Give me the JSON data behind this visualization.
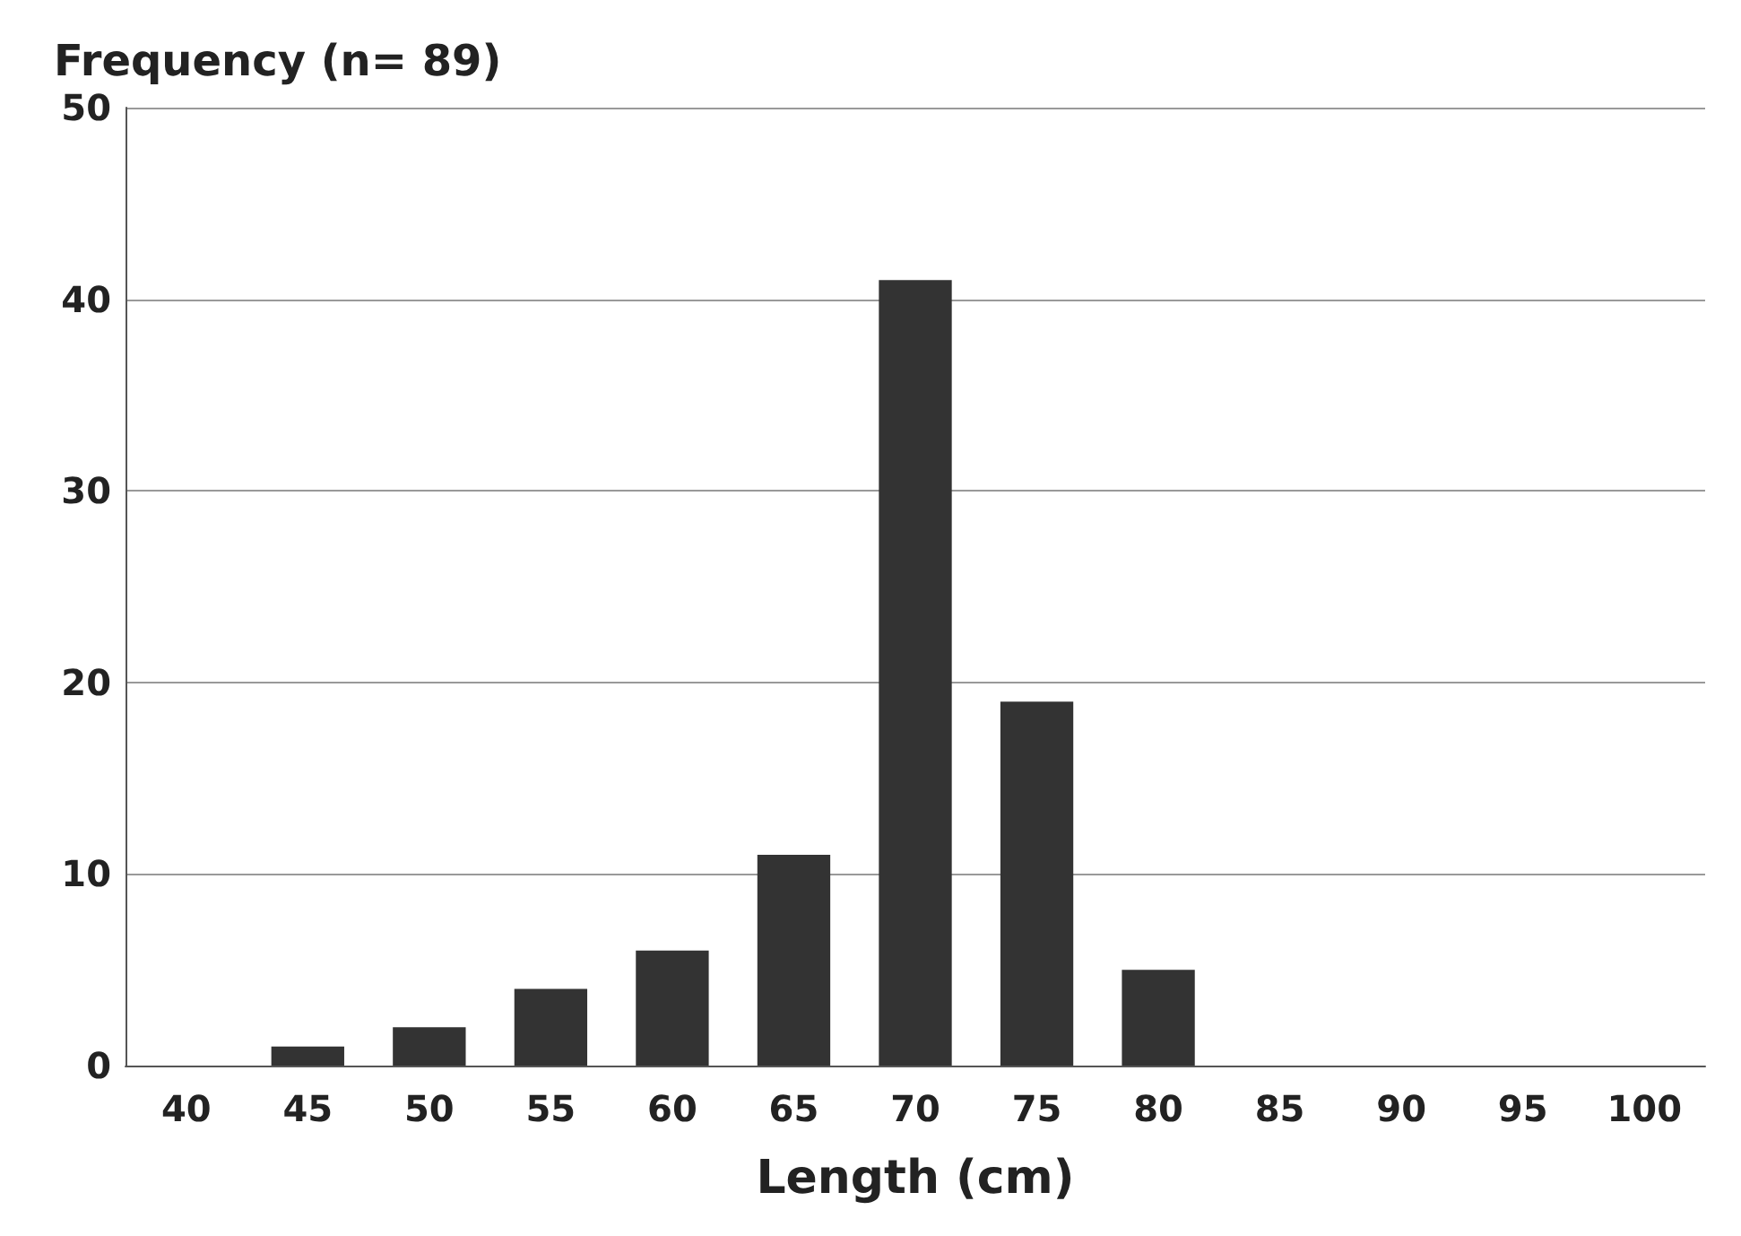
{
  "chart_data": {
    "type": "bar",
    "ylabel": "Frequency (n= 89)",
    "xlabel": "Length (cm)",
    "categories": [
      "40",
      "45",
      "50",
      "55",
      "60",
      "65",
      "70",
      "75",
      "80",
      "85",
      "90",
      "95",
      "100"
    ],
    "values": [
      0,
      1,
      2,
      4,
      6,
      11,
      41,
      19,
      5,
      0,
      0,
      0,
      0
    ],
    "color": "#333333",
    "ylim": [
      0,
      50
    ],
    "yticks": [
      0,
      10,
      20,
      30,
      40,
      50
    ],
    "grid": "y"
  }
}
